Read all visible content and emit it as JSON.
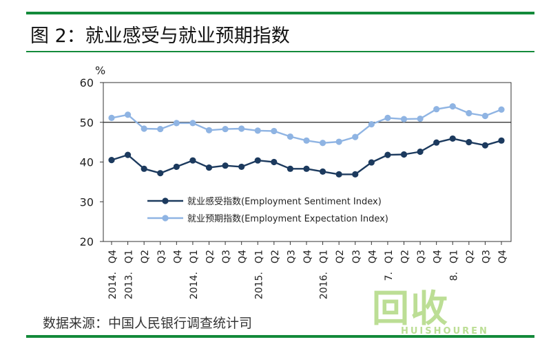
{
  "figure": {
    "title": "图 2：就业感受与就业预期指数",
    "source": "数据来源：中国人民银行调查统计司"
  },
  "watermark": {
    "mark": "回收",
    "text": "HUISHOUREN"
  },
  "colors": {
    "rule": "#138a3a",
    "sentiment": "#1c3a5e",
    "expectation": "#8fb4e3",
    "watermark": "#86c440"
  },
  "chart_data": {
    "type": "line",
    "ylabel": "%",
    "ylim": [
      20,
      60
    ],
    "yticks": [
      20,
      30,
      40,
      50,
      60
    ],
    "reference_line": 50,
    "grid": false,
    "legend_position": "center-right",
    "categories": [
      "Q4",
      "Q1",
      "Q2",
      "Q3",
      "Q4",
      "Q1",
      "Q2",
      "Q3",
      "Q4",
      "Q1",
      "Q2",
      "Q3",
      "Q4",
      "Q1",
      "Q2",
      "Q3",
      "Q4",
      "Q1",
      "Q2",
      "Q3",
      "Q4",
      "Q1",
      "Q2",
      "Q3",
      "Q4"
    ],
    "year_labels": [
      {
        "index": 0,
        "label": "2014."
      },
      {
        "index": 1,
        "label": "2013."
      },
      {
        "index": 5,
        "label": "2014."
      },
      {
        "index": 9,
        "label": "2015."
      },
      {
        "index": 13,
        "label": "2016."
      },
      {
        "index": 17,
        "label": "7."
      },
      {
        "index": 21,
        "label": "8."
      }
    ],
    "series": [
      {
        "name": "就业感受指数(Employment Sentiment Index)",
        "color": "#1c3a5e",
        "values": [
          40.5,
          41.8,
          38.3,
          37.2,
          38.8,
          40.4,
          38.6,
          39.1,
          38.8,
          40.4,
          40.0,
          38.3,
          38.3,
          37.6,
          36.9,
          36.9,
          39.9,
          41.8,
          41.9,
          42.6,
          44.9,
          45.9,
          45.0,
          44.2,
          45.4
        ]
      },
      {
        "name": "就业预期指数(Employment Expectation Index)",
        "color": "#8fb4e3",
        "values": [
          51.1,
          51.9,
          48.4,
          48.3,
          49.8,
          49.8,
          48.0,
          48.3,
          48.4,
          47.9,
          47.8,
          46.4,
          45.4,
          44.8,
          45.1,
          46.3,
          49.5,
          51.1,
          50.8,
          50.9,
          53.3,
          54.0,
          52.3,
          51.6,
          53.2
        ]
      }
    ]
  }
}
